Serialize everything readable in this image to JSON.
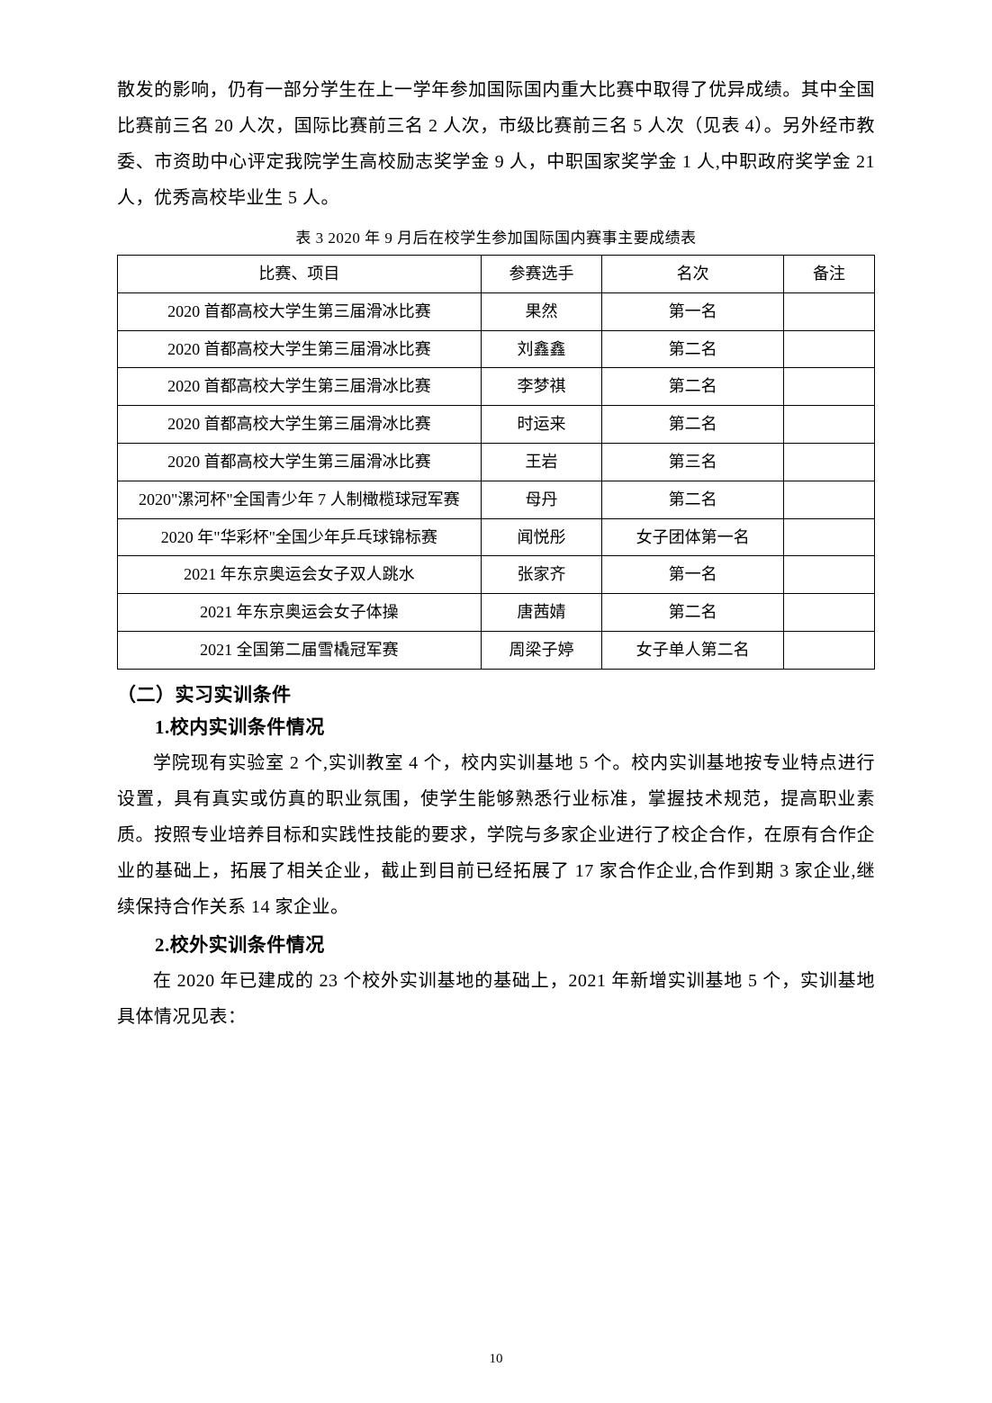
{
  "paragraphs": {
    "p1": "散发的影响，仍有一部分学生在上一学年参加国际国内重大比赛中取得了优异成绩。其中全国比赛前三名 20 人次，国际比赛前三名 2 人次，市级比赛前三名 5 人次（见表 4）。另外经市教委、市资助中心评定我院学生高校励志奖学金 9 人，中职国家奖学金 1 人,中职政府奖学金 21 人，优秀高校毕业生 5 人。",
    "caption": "表 3 2020 年 9 月后在校学生参加国际国内赛事主要成绩表",
    "h2": "（二）实习实训条件",
    "h3_1": "1.校内实训条件情况",
    "p2": "学院现有实验室 2 个,实训教室 4 个，校内实训基地 5 个。校内实训基地按专业特点进行设置，具有真实或仿真的职业氛围，使学生能够熟悉行业标准，掌握技术规范，提高职业素质。按照专业培养目标和实践性技能的要求，学院与多家企业进行了校企合作，在原有合作企业的基础上，拓展了相关企业，截止到目前已经拓展了 17 家合作企业,合作到期 3 家企业,继续保持合作关系 14 家企业。",
    "h3_2": "2.校外实训条件情况",
    "p3": "在 2020 年已建成的 23 个校外实训基地的基础上，2021 年新增实训基地 5 个，实训基地具体情况见表：",
    "pagenum": "10"
  },
  "table": {
    "headers": {
      "event": "比赛、项目",
      "player": "参赛选手",
      "rank": "名次",
      "note": "备注"
    },
    "rows": [
      {
        "event": "2020 首都高校大学生第三届滑冰比赛",
        "player": "果然",
        "rank": "第一名",
        "note": ""
      },
      {
        "event": "2020 首都高校大学生第三届滑冰比赛",
        "player": "刘鑫鑫",
        "rank": "第二名",
        "note": ""
      },
      {
        "event": "2020 首都高校大学生第三届滑冰比赛",
        "player": "李梦祺",
        "rank": "第二名",
        "note": ""
      },
      {
        "event": "2020 首都高校大学生第三届滑冰比赛",
        "player": "时运来",
        "rank": "第二名",
        "note": ""
      },
      {
        "event": "2020 首都高校大学生第三届滑冰比赛",
        "player": "王岩",
        "rank": "第三名",
        "note": ""
      },
      {
        "event": "2020\"漯河杯\"全国青少年 7 人制橄榄球冠军赛",
        "player": "母丹",
        "rank": "第二名",
        "note": ""
      },
      {
        "event": "2020 年\"华彩杯\"全国少年乒乓球锦标赛",
        "player": "闻悦彤",
        "rank": "女子团体第一名",
        "note": ""
      },
      {
        "event": "2021 年东京奥运会女子双人跳水",
        "player": "张家齐",
        "rank": "第一名",
        "note": ""
      },
      {
        "event": "2021 年东京奥运会女子体操",
        "player": "唐茜婧",
        "rank": "第二名",
        "note": ""
      },
      {
        "event": "2021 全国第二届雪橇冠军赛",
        "player": "周梁子婷",
        "rank": "女子单人第二名",
        "note": ""
      }
    ]
  },
  "style": {
    "text_color": "#000000",
    "bg_color": "#ffffff",
    "border_color": "#000000",
    "body_fontsize": 20,
    "caption_fontsize": 17,
    "table_fontsize": 18,
    "heading_fontsize": 21,
    "line_height": 2.0,
    "col_widths_pct": [
      48,
      16,
      24,
      12
    ]
  }
}
